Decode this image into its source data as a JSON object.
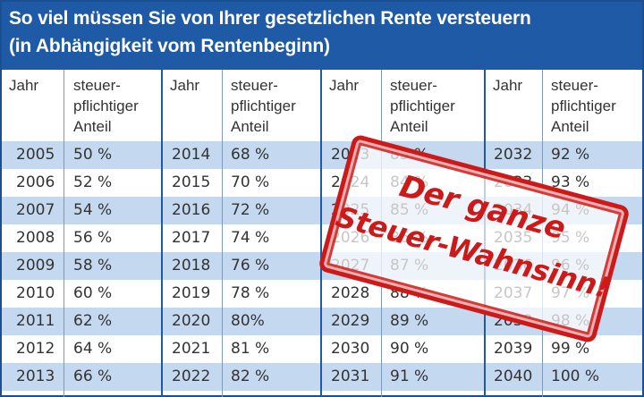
{
  "title": {
    "line1": "So viel müssen Sie von Ihrer gesetzlichen Rente versteuern",
    "line2": "(in Abhängigkeit vom Rentenbeginn)"
  },
  "header": {
    "year_label": "Jahr",
    "share_label": "steuer-\npflichtiger\nAnteil"
  },
  "columns": [
    [
      {
        "year": "2005",
        "share": "50 %"
      },
      {
        "year": "2006",
        "share": "52 %"
      },
      {
        "year": "2007",
        "share": "54 %"
      },
      {
        "year": "2008",
        "share": "56 %"
      },
      {
        "year": "2009",
        "share": "58 %"
      },
      {
        "year": "2010",
        "share": "60 %"
      },
      {
        "year": "2011",
        "share": "62 %"
      },
      {
        "year": "2012",
        "share": "64 %"
      },
      {
        "year": "2013",
        "share": "66 %"
      }
    ],
    [
      {
        "year": "2014",
        "share": "68 %"
      },
      {
        "year": "2015",
        "share": "70 %"
      },
      {
        "year": "2016",
        "share": "72 %"
      },
      {
        "year": "2017",
        "share": "74 %"
      },
      {
        "year": "2018",
        "share": "76 %"
      },
      {
        "year": "2019",
        "share": "78 %"
      },
      {
        "year": "2020",
        "share": "80%"
      },
      {
        "year": "2021",
        "share": "81 %"
      },
      {
        "year": "2022",
        "share": "82 %"
      }
    ],
    [
      {
        "year": "2023",
        "share": "83 %"
      },
      {
        "year": "2024",
        "share": "84 %"
      },
      {
        "year": "2025",
        "share": "85 %"
      },
      {
        "year": "2026",
        "share": "86 %"
      },
      {
        "year": "2027",
        "share": "87 %"
      },
      {
        "year": "2028",
        "share": "88 %"
      },
      {
        "year": "2029",
        "share": "89 %"
      },
      {
        "year": "2030",
        "share": "90 %"
      },
      {
        "year": "2031",
        "share": "91 %"
      }
    ],
    [
      {
        "year": "2032",
        "share": "92 %"
      },
      {
        "year": "2033",
        "share": "93 %"
      },
      {
        "year": "2034",
        "share": "94 %"
      },
      {
        "year": "2035",
        "share": "95 %"
      },
      {
        "year": "2036",
        "share": "96 %"
      },
      {
        "year": "2037",
        "share": "97 %"
      },
      {
        "year": "2038",
        "share": "98 %"
      },
      {
        "year": "2039",
        "share": "99 %"
      },
      {
        "year": "2040",
        "share": "100 %"
      }
    ]
  ],
  "stamp": {
    "line1": "Der ganze",
    "line2": "Steuer-Wahnsinn!"
  },
  "colors": {
    "header_blue": "#1f5aa6",
    "row_blue": "#c4d8f0",
    "stamp_red": "#cc1a1a"
  }
}
